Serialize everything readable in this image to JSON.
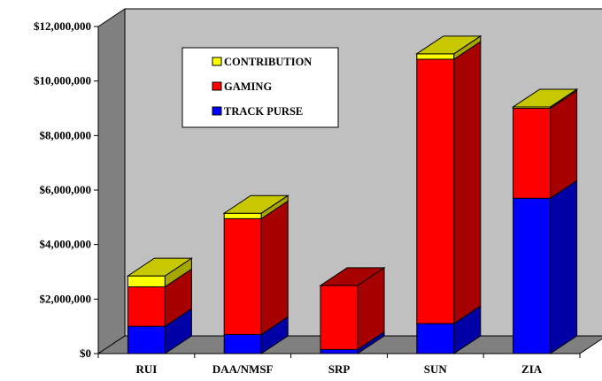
{
  "chart_data": {
    "type": "bar",
    "stacked": true,
    "three_d": true,
    "categories": [
      "RUI",
      "DAA/NMSF",
      "SRP",
      "SUN",
      "ZIA"
    ],
    "series": [
      {
        "name": "TRACK PURSE",
        "color": "#0000ff",
        "side_color": "#0000a6",
        "values": [
          1000000,
          700000,
          150000,
          1100000,
          5700000
        ]
      },
      {
        "name": "GAMING",
        "color": "#ff0000",
        "side_color": "#a60000",
        "values": [
          1450000,
          4250000,
          2350000,
          9700000,
          3300000
        ]
      },
      {
        "name": "CONTRIBUTION",
        "color": "#ffff00",
        "side_color": "#a6a600",
        "values": [
          400000,
          200000,
          0,
          200000,
          50000
        ]
      }
    ],
    "top_color": "#c8c800",
    "ylim": [
      0,
      12000000
    ],
    "yticks": [
      "$0",
      "$2,000,000",
      "$4,000,000",
      "$6,000,000",
      "$8,000,000",
      "$10,000,000",
      "$12,000,000"
    ],
    "grid": false,
    "legend_position": "top-center",
    "legend_order": [
      "CONTRIBUTION",
      "GAMING",
      "TRACK PURSE"
    ],
    "wall_color": "#c0c0c0",
    "floor_color": "#808080",
    "side_wall_color": "#808080"
  }
}
